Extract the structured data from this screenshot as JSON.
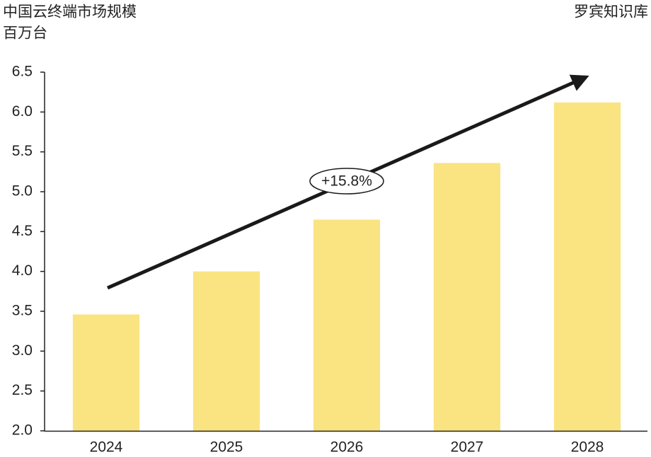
{
  "chart_data": {
    "type": "bar",
    "title": "中国云终端市场规模",
    "subtitle": "百万台",
    "source": "罗宾知识库",
    "annotation": "+15.8%",
    "categories": [
      "2024",
      "2025",
      "2026",
      "2027",
      "2028"
    ],
    "values": [
      3.46,
      4.0,
      4.65,
      5.36,
      6.12
    ],
    "color": "#fae381",
    "ylim": [
      2.0,
      6.5
    ],
    "yticks": [
      {
        "value": 2,
        "label": "2.0"
      },
      2.5,
      {
        "value": 3,
        "label": "3.0"
      },
      3.5,
      {
        "value": 4,
        "label": "4.0"
      },
      4.5,
      {
        "value": 5,
        "label": "5.0"
      },
      5.5,
      {
        "value": 6,
        "label": "6.0"
      },
      6.5
    ],
    "grid": false
  }
}
